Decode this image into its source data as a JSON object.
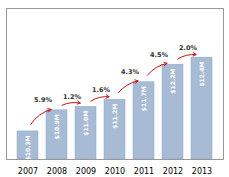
{
  "chart_data": {
    "type": "bar",
    "categories": [
      "2007",
      "2008",
      "2009",
      "2010",
      "2011",
      "2012",
      "2013"
    ],
    "values": [
      10.3,
      10.9,
      11.0,
      11.2,
      11.7,
      12.2,
      12.4
    ],
    "value_labels": [
      "$10.3M",
      "$10.9M",
      "$11.0M",
      "$11.2M",
      "$11.7M",
      "$12.2M",
      "$12.4M"
    ],
    "color": "#a8bbd4",
    "ylim": [
      9.5,
      13.8
    ],
    "grid": false,
    "tick_labels": "x",
    "data_labels": true,
    "annotations": [
      {
        "text": "5.9%",
        "from": "2007",
        "to": "2008",
        "color": "#cc1111"
      },
      {
        "text": "1.2%",
        "from": "2008",
        "to": "2009",
        "color": "#cc1111"
      },
      {
        "text": "1.6%",
        "from": "2009",
        "to": "2010",
        "color": "#cc1111"
      },
      {
        "text": "4.3%",
        "from": "2010",
        "to": "2011",
        "color": "#cc1111"
      },
      {
        "text": "4.5%",
        "from": "2011",
        "to": "2012",
        "color": "#cc1111"
      },
      {
        "text": "2.0%",
        "from": "2012",
        "to": "2013",
        "color": "#cc1111"
      }
    ]
  }
}
